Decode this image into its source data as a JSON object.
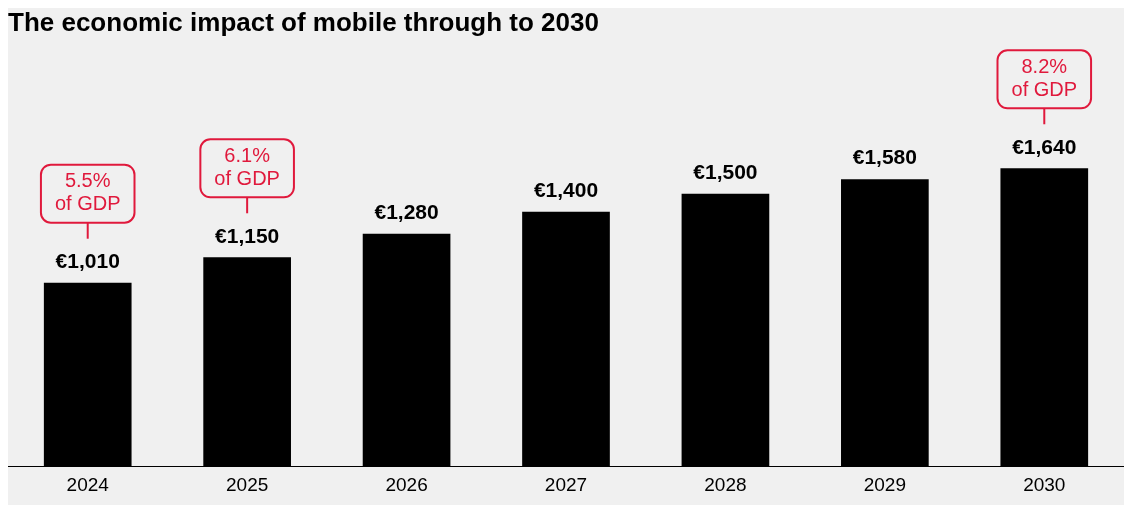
{
  "chart_data": {
    "type": "bar",
    "title": "The economic impact of mobile through to 2030",
    "categories": [
      "2024",
      "2025",
      "2026",
      "2027",
      "2028",
      "2029",
      "2030"
    ],
    "values": [
      1010,
      1150,
      1280,
      1400,
      1500,
      1580,
      1640
    ],
    "value_labels": [
      "€1,010",
      "€1,150",
      "€1,280",
      "€1,400",
      "€1,500",
      "€1,580",
      "€1,640"
    ],
    "color": "#000000",
    "annotations": [
      {
        "text": "5.5% of GDP",
        "x": "2024"
      },
      {
        "text": "6.1% of GDP",
        "x": "2025"
      },
      {
        "text": "8.2% of GDP",
        "x": "2030"
      }
    ],
    "grid": false,
    "legend": false
  }
}
